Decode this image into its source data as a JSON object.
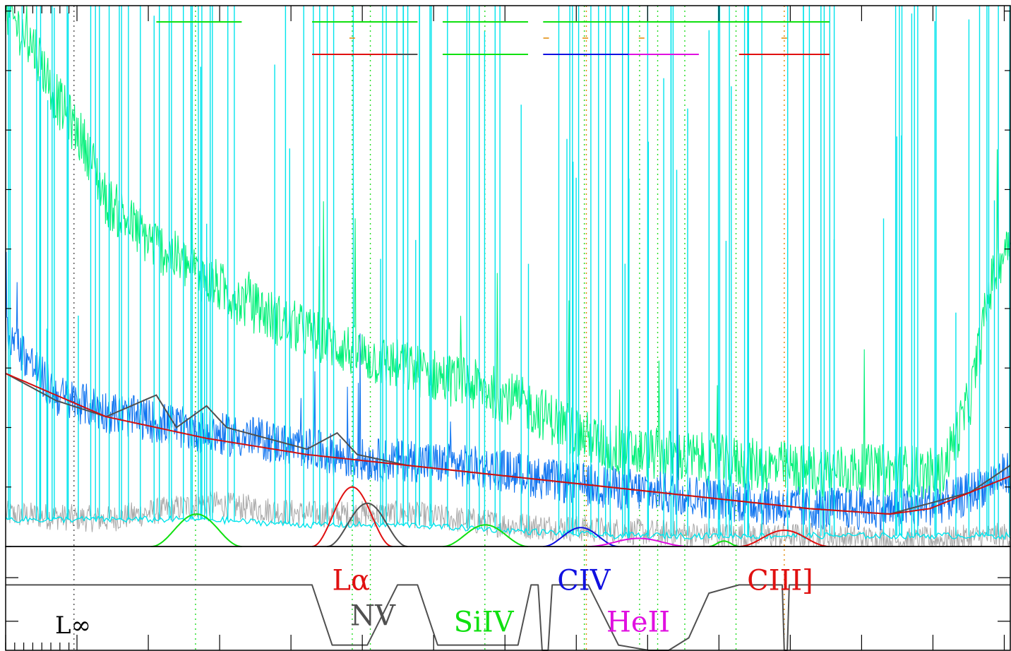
{
  "chart_data": {
    "type": "line",
    "title": "",
    "xlabel": "",
    "ylabel": "",
    "axis_ticks": "unlabeled",
    "grid": false,
    "legend": "none",
    "colors": {
      "observed_flux": "#00f078",
      "binned_flux": "#1075f0",
      "noise_cyan": "#00e4ec",
      "noise_grey": "#a8a8a8",
      "model": "#505050",
      "continuum": "#d01010",
      "lya": "#e01010",
      "nv": "#505050",
      "siiv": "#10e010",
      "civ": "#1010e0",
      "heii": "#e010e0",
      "ciii": "#e01010",
      "marker_green": "#22dd22",
      "marker_orange": "#e08800"
    },
    "main_panel": {
      "ylim": [
        0,
        100
      ],
      "series": [
        {
          "key": "flux",
          "color_key": "observed_flux",
          "points": [
            [
              0,
              99
            ],
            [
              3,
              92
            ],
            [
              5,
              83
            ],
            [
              8,
              74
            ],
            [
              10,
              64
            ],
            [
              14,
              57
            ],
            [
              18,
              52
            ],
            [
              22,
              47
            ],
            [
              27,
              42
            ],
            [
              32,
              38
            ],
            [
              36,
              35
            ],
            [
              40,
              33
            ],
            [
              44,
              31
            ],
            [
              48,
              29
            ],
            [
              52,
              26
            ],
            [
              56,
              22
            ],
            [
              60,
              18
            ],
            [
              65,
              17
            ],
            [
              70,
              16
            ],
            [
              75,
              15
            ],
            [
              80,
              14
            ],
            [
              85,
              14
            ],
            [
              88,
              14
            ],
            [
              90,
              14
            ],
            [
              93,
              13
            ],
            [
              96,
              27
            ],
            [
              98,
              48
            ],
            [
              100,
              58
            ]
          ]
        },
        {
          "key": "binned",
          "color_key": "binned_flux",
          "points": [
            [
              0,
              40
            ],
            [
              5,
              28
            ],
            [
              10,
              25
            ],
            [
              15,
              23
            ],
            [
              20,
              21
            ],
            [
              25,
              20
            ],
            [
              30,
              18
            ],
            [
              35,
              16
            ],
            [
              40,
              16
            ],
            [
              45,
              15
            ],
            [
              50,
              14
            ],
            [
              55,
              12
            ],
            [
              60,
              11
            ],
            [
              65,
              10
            ],
            [
              70,
              9
            ],
            [
              75,
              8
            ],
            [
              80,
              7
            ],
            [
              85,
              7
            ],
            [
              90,
              7
            ],
            [
              95,
              9
            ],
            [
              100,
              14
            ]
          ]
        },
        {
          "key": "grey_noise",
          "color_key": "noise_grey",
          "points": [
            [
              0,
              6
            ],
            [
              10,
              5
            ],
            [
              20,
              8
            ],
            [
              30,
              6
            ],
            [
              40,
              6
            ],
            [
              50,
              4
            ],
            [
              60,
              3
            ],
            [
              70,
              2
            ],
            [
              80,
              2
            ],
            [
              90,
              1
            ],
            [
              100,
              2
            ]
          ]
        },
        {
          "key": "cyan_floor",
          "color_key": "noise_cyan",
          "points": [
            [
              0,
              5
            ],
            [
              10,
              5
            ],
            [
              20,
              5
            ],
            [
              30,
              4
            ],
            [
              40,
              4
            ],
            [
              50,
              3
            ],
            [
              60,
              2
            ],
            [
              70,
              2
            ],
            [
              80,
              2
            ],
            [
              90,
              2
            ],
            [
              100,
              2
            ]
          ]
        },
        {
          "key": "model",
          "color_key": "model",
          "points": [
            [
              0,
              32
            ],
            [
              5,
              27
            ],
            [
              10,
              24
            ],
            [
              15,
              28
            ],
            [
              17,
              22
            ],
            [
              20,
              26
            ],
            [
              22,
              22
            ],
            [
              30,
              18
            ],
            [
              33,
              21
            ],
            [
              35,
              17
            ],
            [
              40,
              15
            ],
            [
              50,
              13
            ],
            [
              60,
              11
            ],
            [
              70,
              9
            ],
            [
              80,
              7
            ],
            [
              88,
              6
            ],
            [
              92,
              8
            ],
            [
              96,
              10
            ],
            [
              100,
              15
            ]
          ]
        },
        {
          "key": "continuum",
          "color_key": "continuum",
          "points": [
            [
              0,
              32
            ],
            [
              10,
              24
            ],
            [
              20,
              20
            ],
            [
              30,
              17
            ],
            [
              40,
              15
            ],
            [
              50,
              13
            ],
            [
              60,
              11
            ],
            [
              70,
              9
            ],
            [
              80,
              7
            ],
            [
              88,
              6
            ],
            [
              92,
              7
            ],
            [
              100,
              13
            ]
          ]
        }
      ],
      "component_profiles": [
        {
          "color_key": "siiv",
          "x": [
            14.5,
            23.5
          ],
          "peak": 6
        },
        {
          "color_key": "lya",
          "x": [
            30.5,
            38.5
          ],
          "peak": 11
        },
        {
          "color_key": "nv",
          "x": [
            32,
            40
          ],
          "peak": 8
        },
        {
          "color_key": "siiv",
          "x": [
            43.5,
            52
          ],
          "peak": 4
        },
        {
          "color_key": "civ",
          "x": [
            53.5,
            61
          ],
          "peak": 3.5
        },
        {
          "color_key": "heii",
          "x": [
            58,
            68
          ],
          "peak": 1.5
        },
        {
          "color_key": "siiv",
          "x": [
            70,
            73
          ],
          "peak": 1
        },
        {
          "color_key": "ciii",
          "x": [
            73,
            82
          ],
          "peak": 3
        }
      ],
      "range_bars": [
        {
          "color_key": "siiv",
          "x": [
            15,
            23.5
          ],
          "y": 97
        },
        {
          "color_key": "siiv",
          "x": [
            30.5,
            41
          ],
          "y": 97
        },
        {
          "color_key": "siiv",
          "x": [
            43.5,
            52
          ],
          "y": 97
        },
        {
          "color_key": "siiv",
          "x": [
            53.5,
            82
          ],
          "y": 97
        },
        {
          "color_key": "lya",
          "x": [
            30.5,
            39
          ],
          "y": 91
        },
        {
          "color_key": "nv",
          "x": [
            39,
            41
          ],
          "y": 91
        },
        {
          "color_key": "siiv",
          "x": [
            43.5,
            52
          ],
          "y": 91
        },
        {
          "color_key": "civ",
          "x": [
            53.5,
            62
          ],
          "y": 91
        },
        {
          "color_key": "heii",
          "x": [
            62,
            69
          ],
          "y": 91
        },
        {
          "color_key": "ciii",
          "x": [
            73,
            82
          ],
          "y": 91
        }
      ],
      "orange_ticks": [
        34.5,
        53.8,
        57.7,
        63.3,
        77.5
      ]
    },
    "bottom_panel": {
      "ylim": [
        0,
        1
      ],
      "transmission": [
        [
          0,
          0.63
        ],
        [
          30.5,
          0.63
        ],
        [
          32.5,
          0.05
        ],
        [
          36,
          0.05
        ],
        [
          39,
          0.63
        ],
        [
          41,
          0.63
        ],
        [
          43,
          0.05
        ],
        [
          51,
          0.05
        ],
        [
          52.3,
          0.63
        ],
        [
          53,
          0.63
        ],
        [
          53.4,
          0
        ],
        [
          54,
          0
        ],
        [
          54.4,
          0.63
        ],
        [
          58,
          0.63
        ],
        [
          61,
          0.05
        ],
        [
          64,
          0
        ],
        [
          66,
          0
        ],
        [
          68,
          0.12
        ],
        [
          70,
          0.55
        ],
        [
          73,
          0.63
        ],
        [
          77.3,
          0.63
        ],
        [
          77.5,
          0
        ],
        [
          77.8,
          0
        ],
        [
          78,
          0.63
        ],
        [
          81,
          0.63
        ],
        [
          100,
          0.63
        ]
      ],
      "labels": [
        {
          "text": "Lα",
          "color_key": "lya",
          "x": 32.5,
          "y": 0.58
        },
        {
          "text": "NV",
          "color_key": "nv",
          "x": 34.3,
          "y": 0.24
        },
        {
          "text": "SiIV",
          "color_key": "siiv",
          "x": 44.6,
          "y": 0.18
        },
        {
          "text": "CIV",
          "color_key": "civ",
          "x": 54.9,
          "y": 0.58
        },
        {
          "text": "HeII",
          "color_key": "heii",
          "x": 59.8,
          "y": 0.18
        },
        {
          "text": "CIII]",
          "color_key": "ciii",
          "x": 73.8,
          "y": 0.58
        }
      ],
      "corner_label": "L∞"
    },
    "vertical_guides": [
      {
        "x": 6.8,
        "color_key": "nv",
        "style": "dotted"
      },
      {
        "x": 18.9,
        "color_key": "marker_green",
        "style": "dotted"
      },
      {
        "x": 34.5,
        "color_key": "marker_green",
        "style": "dotted"
      },
      {
        "x": 36.3,
        "color_key": "marker_green",
        "style": "dotted"
      },
      {
        "x": 47.7,
        "color_key": "marker_green",
        "style": "dotted"
      },
      {
        "x": 57.6,
        "color_key": "marker_green",
        "style": "dotted"
      },
      {
        "x": 57.8,
        "color_key": "marker_orange",
        "style": "dotted"
      },
      {
        "x": 63.1,
        "color_key": "marker_green",
        "style": "dotted"
      },
      {
        "x": 64.9,
        "color_key": "marker_green",
        "style": "dotted"
      },
      {
        "x": 67.6,
        "color_key": "marker_green",
        "style": "dotted"
      },
      {
        "x": 72.7,
        "color_key": "marker_green",
        "style": "dotted"
      },
      {
        "x": 77.5,
        "color_key": "marker_orange",
        "style": "dotted"
      }
    ]
  }
}
